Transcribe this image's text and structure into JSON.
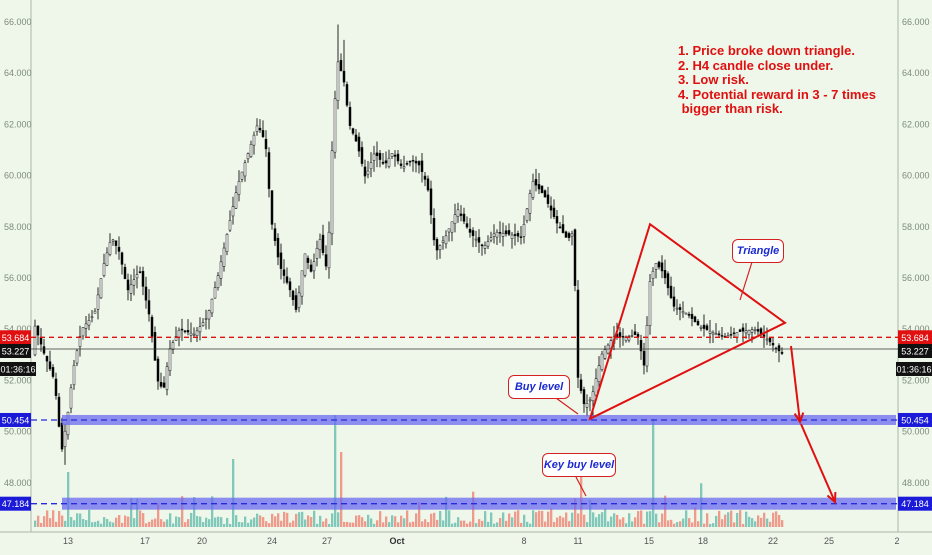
{
  "chart_data": {
    "type": "candlestick",
    "y_ticks": [
      "66.000",
      "64.000",
      "62.000",
      "60.000",
      "58.000",
      "56.000",
      "54.000",
      "52.000",
      "50.000",
      "48.000"
    ],
    "x_ticks": [
      "13",
      "17",
      "20",
      "24",
      "27",
      "Oct",
      "8",
      "11",
      "15",
      "18",
      "22",
      "25",
      "2"
    ],
    "ylim": [
      46.4,
      66.9
    ],
    "price_marks": {
      "resistance": "53.684",
      "last_price": "53.227",
      "countdown": "01:36:16",
      "buy_level": "50.454",
      "key_buy_level": "47.184"
    },
    "levels": {
      "resistance": 53.684,
      "last_price": 53.227,
      "buy_level": 50.454,
      "key_buy_level": 47.184
    },
    "triangle": {
      "apex": 54.25,
      "top": 58.1,
      "bottom": 50.5
    },
    "notes": [
      "1. Price broke down triangle.",
      "2. H4 candle close under.",
      "3. Low risk.",
      "4. Potential reward in 3 - 7 times",
      " bigger than risk."
    ],
    "annotations": {
      "triangle": "Triangle",
      "buy_level": "Buy level",
      "key_buy_level": "Key buy level"
    },
    "colors": {
      "up": "#ffffff",
      "down": "#000000",
      "annotation": "#e01010",
      "level": "#2a2ad8",
      "vol_up": "#6cc0b0",
      "vol_down": "#f08a7a"
    }
  }
}
